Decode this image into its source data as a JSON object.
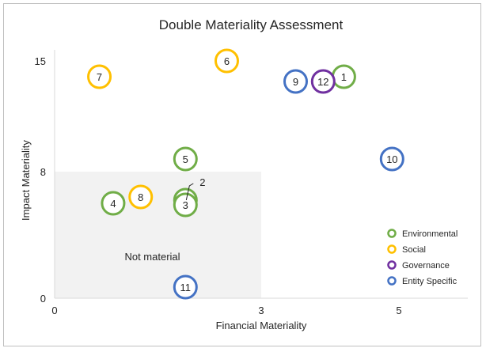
{
  "chart_data": {
    "type": "scatter",
    "title": "Double Materiality Assessment",
    "xlabel": "Financial Materiality",
    "ylabel": "Impact Materiality",
    "xlim": [
      0,
      6
    ],
    "ylim": [
      0,
      15.7
    ],
    "xticks": [
      0,
      3,
      5
    ],
    "yticks": [
      0,
      8,
      15
    ],
    "grid": false,
    "legend_position": "bottom-right",
    "region": {
      "label": "Not material",
      "x": [
        0,
        3
      ],
      "y": [
        0,
        8
      ],
      "color": "#f2f2f2"
    },
    "series": [
      {
        "name": "Environmental",
        "color": "#70ad47",
        "points": [
          {
            "label": "1",
            "x": 4.2,
            "y": 14.0
          },
          {
            "label": "2",
            "x": 1.9,
            "y": 6.2
          },
          {
            "label": "3",
            "x": 1.9,
            "y": 5.9
          },
          {
            "label": "4",
            "x": 0.85,
            "y": 6.0
          },
          {
            "label": "5",
            "x": 1.9,
            "y": 8.8
          }
        ]
      },
      {
        "name": "Social",
        "color": "#ffc000",
        "points": [
          {
            "label": "6",
            "x": 2.5,
            "y": 15.0
          },
          {
            "label": "7",
            "x": 0.65,
            "y": 14.0
          },
          {
            "label": "8",
            "x": 1.25,
            "y": 6.4
          }
        ]
      },
      {
        "name": "Governance",
        "color": "#7030a0",
        "points": [
          {
            "label": "12",
            "x": 3.9,
            "y": 13.7
          }
        ]
      },
      {
        "name": "Entity Specific",
        "color": "#4472c4",
        "points": [
          {
            "label": "9",
            "x": 3.5,
            "y": 13.7
          },
          {
            "label": "10",
            "x": 4.9,
            "y": 8.8
          },
          {
            "label": "11",
            "x": 1.9,
            "y": 0.7
          }
        ]
      }
    ]
  }
}
